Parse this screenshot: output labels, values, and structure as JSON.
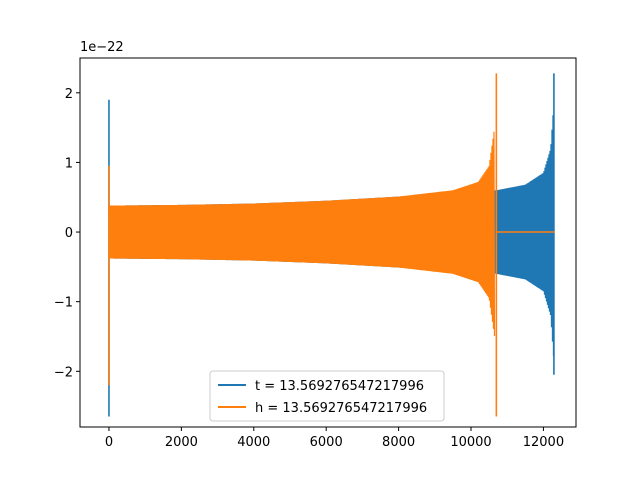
{
  "chart_data": {
    "type": "line",
    "title": "",
    "xlabel": "",
    "ylabel": "",
    "xlim": [
      -800,
      12900
    ],
    "ylim": [
      -2.8,
      2.5
    ],
    "y_scale_label": "1e−22",
    "grid": false,
    "legend_placement": "lower-center",
    "x_ticks": [
      0,
      2000,
      4000,
      6000,
      8000,
      10000,
      12000
    ],
    "x_tick_labels": [
      "0",
      "2000",
      "4000",
      "6000",
      "8000",
      "10000",
      "12000"
    ],
    "y_ticks": [
      -2,
      -1,
      0,
      1,
      2
    ],
    "y_tick_labels": [
      "−2",
      "−1",
      "0",
      "1",
      "2"
    ],
    "series": [
      {
        "name": "t = 13.569276547217996",
        "color": "#1f77b4",
        "start_spike": {
          "x": 0,
          "max": 1.9,
          "min": -2.65
        },
        "envelope": [
          {
            "x": 0,
            "amp": 0.38
          },
          {
            "x": 2000,
            "amp": 0.39
          },
          {
            "x": 4000,
            "amp": 0.41
          },
          {
            "x": 6000,
            "amp": 0.45
          },
          {
            "x": 8000,
            "amp": 0.51
          },
          {
            "x": 10000,
            "amp": 0.58
          },
          {
            "x": 10700,
            "amp": 0.6
          },
          {
            "x": 11500,
            "amp": 0.68
          },
          {
            "x": 12000,
            "amp": 0.85
          },
          {
            "x": 12200,
            "amp": 1.2
          },
          {
            "x": 12280,
            "amp": 1.8
          }
        ],
        "end_spike": {
          "x": 12290,
          "max": 2.28,
          "min": -2.05
        },
        "tail": {
          "x_start": 12290,
          "x_end": 12300,
          "value": 0
        }
      },
      {
        "name": "h = 13.569276547217996",
        "color": "#ff7f0e",
        "start_spike": {
          "x": 0,
          "max": 0.95,
          "min": -2.2
        },
        "envelope": [
          {
            "x": 0,
            "amp": 0.38
          },
          {
            "x": 2000,
            "amp": 0.39
          },
          {
            "x": 4000,
            "amp": 0.41
          },
          {
            "x": 6000,
            "amp": 0.45
          },
          {
            "x": 8000,
            "amp": 0.51
          },
          {
            "x": 9500,
            "amp": 0.6
          },
          {
            "x": 10200,
            "amp": 0.72
          },
          {
            "x": 10500,
            "amp": 0.95
          },
          {
            "x": 10650,
            "amp": 1.5
          }
        ],
        "end_spike": {
          "x": 10700,
          "max": 2.28,
          "min": -2.65
        },
        "tail": {
          "x_start": 10710,
          "x_end": 12300,
          "value": 0
        }
      }
    ]
  }
}
